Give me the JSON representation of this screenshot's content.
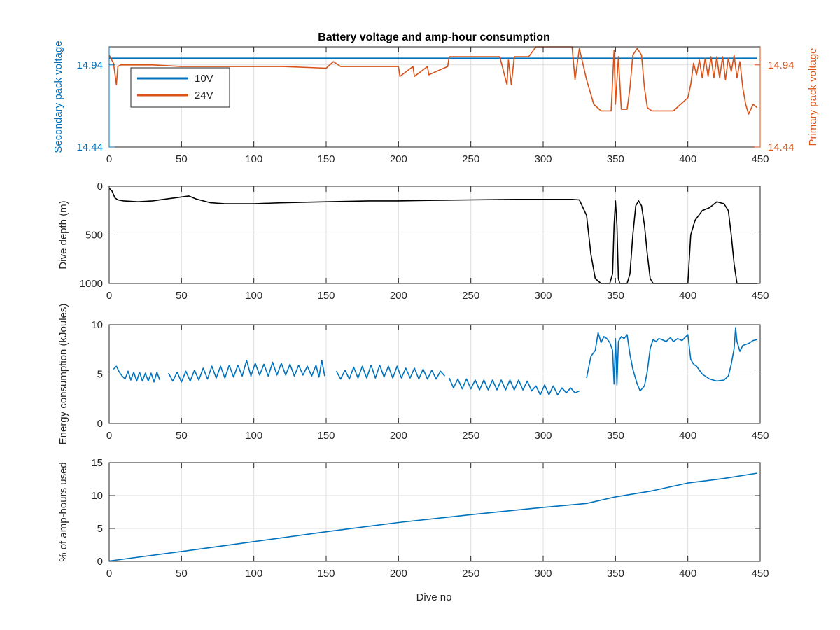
{
  "colors": {
    "blue": "#0072BD",
    "orange": "#D95319",
    "black": "#000000",
    "grid": "#dfdfdf",
    "axis": "#262626"
  },
  "figure": {
    "title": "Battery voltage and amp-hour consumption",
    "xlabel": "Dive no"
  },
  "chart_data": [
    {
      "type": "line",
      "title": "Battery voltage and amp-hour consumption",
      "xlabel": "",
      "ylabel": "Secondary pack voltage",
      "ylabel_right": "Primary pack voltage",
      "xlim": [
        0,
        450
      ],
      "xticks": [
        0,
        50,
        100,
        150,
        200,
        250,
        300,
        350,
        400,
        450
      ],
      "ylim": [
        14.44,
        15.05
      ],
      "yticks": [
        14.44,
        14.94
      ],
      "yticks_right": [
        14.44,
        14.94
      ],
      "grid": true,
      "legend": "top-left",
      "series": [
        {
          "name": "10V",
          "axis": "left",
          "color": "#0072BD",
          "x": [
            0,
            448
          ],
          "y": [
            14.98,
            14.98
          ]
        },
        {
          "name": "24V",
          "axis": "right",
          "color": "#D95319",
          "x": [
            0,
            3,
            5,
            6,
            8,
            15,
            30,
            50,
            80,
            120,
            150,
            155,
            160,
            200,
            201,
            210,
            211,
            220,
            221,
            234,
            235,
            240,
            270,
            275,
            276,
            278,
            280,
            285,
            290,
            295,
            300,
            310,
            320,
            322,
            325,
            330,
            335,
            340,
            345,
            347,
            349,
            350,
            352,
            354,
            356,
            358,
            360,
            362,
            365,
            368,
            370,
            372,
            375,
            380,
            385,
            390,
            395,
            400,
            402,
            404,
            406,
            408,
            410,
            412,
            414,
            416,
            418,
            420,
            422,
            424,
            426,
            428,
            430,
            432,
            434,
            436,
            438,
            440,
            442,
            445,
            448
          ],
          "y": [
            15.0,
            14.95,
            14.82,
            14.93,
            14.94,
            14.94,
            14.94,
            14.93,
            14.93,
            14.93,
            14.92,
            14.96,
            14.93,
            14.93,
            14.87,
            14.93,
            14.87,
            14.93,
            14.88,
            14.93,
            14.99,
            14.99,
            14.99,
            14.82,
            14.97,
            14.82,
            14.99,
            14.99,
            14.99,
            15.05,
            15.05,
            15.05,
            15.05,
            14.85,
            15.04,
            14.85,
            14.7,
            14.66,
            14.66,
            14.66,
            15.03,
            14.7,
            14.99,
            14.67,
            14.67,
            14.67,
            14.8,
            15.0,
            15.04,
            15.0,
            14.8,
            14.68,
            14.66,
            14.66,
            14.66,
            14.66,
            14.7,
            14.74,
            14.82,
            14.95,
            14.88,
            14.97,
            14.86,
            14.98,
            14.87,
            14.99,
            14.86,
            14.99,
            14.86,
            14.99,
            14.85,
            14.98,
            14.9,
            15.0,
            14.86,
            14.96,
            14.8,
            14.7,
            14.64,
            14.7,
            14.68
          ]
        }
      ]
    },
    {
      "type": "line",
      "xlabel": "",
      "ylabel": "Dive depth (m)",
      "xlim": [
        0,
        450
      ],
      "xticks": [
        0,
        50,
        100,
        150,
        200,
        250,
        300,
        350,
        400,
        450
      ],
      "ylim": [
        1000,
        0
      ],
      "yticks": [
        0,
        500,
        1000
      ],
      "y_reversed": true,
      "grid": true,
      "series": [
        {
          "color": "#000000",
          "x": [
            0,
            2,
            4,
            6,
            10,
            20,
            30,
            40,
            50,
            55,
            60,
            65,
            70,
            80,
            100,
            120,
            150,
            180,
            200,
            220,
            250,
            280,
            300,
            320,
            325,
            330,
            333,
            336,
            340,
            345,
            346,
            348,
            349,
            350,
            351,
            352,
            353,
            354,
            356,
            358,
            360,
            362,
            364,
            366,
            368,
            370,
            372,
            374,
            376,
            380,
            390,
            398,
            400,
            402,
            405,
            410,
            415,
            420,
            425,
            428,
            430,
            432,
            434,
            436,
            440,
            448
          ],
          "y": [
            20,
            50,
            120,
            140,
            150,
            160,
            150,
            130,
            110,
            100,
            130,
            150,
            170,
            180,
            180,
            170,
            160,
            150,
            150,
            145,
            140,
            135,
            135,
            135,
            140,
            300,
            700,
            950,
            1000,
            1000,
            1000,
            900,
            400,
            150,
            400,
            950,
            1000,
            1000,
            1000,
            1000,
            900,
            500,
            200,
            150,
            200,
            400,
            700,
            950,
            1000,
            1000,
            1000,
            1000,
            1000,
            500,
            350,
            250,
            220,
            160,
            180,
            250,
            500,
            800,
            1000,
            1000,
            1000,
            1000
          ]
        }
      ]
    },
    {
      "type": "line",
      "xlabel": "",
      "ylabel": "Energy consumption (kJoules)",
      "xlim": [
        0,
        450
      ],
      "xticks": [
        0,
        50,
        100,
        150,
        200,
        250,
        300,
        350,
        400,
        450
      ],
      "ylim": [
        0,
        10
      ],
      "yticks": [
        0,
        5,
        10
      ],
      "grid": true,
      "series": [
        {
          "color": "#0072BD",
          "segments": [
            {
              "x": [
                3,
                5,
                7,
                9,
                11,
                13,
                15,
                17,
                19,
                21,
                23,
                25,
                27,
                29,
                31,
                33,
                35
              ],
              "y": [
                5.5,
                5.8,
                5.2,
                4.8,
                4.5,
                5.3,
                4.4,
                5.2,
                4.3,
                5.2,
                4.3,
                5.1,
                4.3,
                5.1,
                4.2,
                5.2,
                4.4
              ]
            },
            {
              "x": [
                41,
                44,
                47,
                50,
                53,
                56,
                59,
                62,
                65,
                68,
                71,
                74,
                77,
                80,
                83,
                86,
                89,
                92,
                95,
                98,
                101,
                104,
                107,
                110,
                113,
                116,
                119,
                122,
                125,
                128,
                131,
                134,
                137,
                140,
                143,
                145,
                147,
                149
              ],
              "y": [
                5.1,
                4.3,
                5.2,
                4.2,
                5.3,
                4.3,
                5.4,
                4.4,
                5.6,
                4.5,
                5.8,
                4.6,
                5.8,
                4.6,
                5.9,
                4.7,
                5.9,
                4.8,
                6.4,
                4.8,
                6.1,
                4.9,
                6.0,
                4.8,
                6.2,
                4.9,
                6.1,
                4.9,
                6.0,
                4.8,
                5.9,
                4.9,
                5.8,
                4.8,
                5.9,
                4.7,
                6.4,
                4.8
              ]
            },
            {
              "x": [
                157,
                160,
                163,
                166,
                169,
                172,
                175,
                178,
                181,
                184,
                187,
                190,
                193,
                196,
                199,
                202,
                205,
                208,
                211,
                214,
                217,
                220,
                223,
                226,
                229,
                232
              ],
              "y": [
                5.3,
                4.5,
                5.4,
                4.5,
                5.7,
                4.6,
                5.8,
                4.6,
                5.9,
                4.6,
                5.9,
                4.7,
                5.8,
                4.6,
                5.8,
                4.6,
                5.6,
                4.6,
                5.6,
                4.5,
                5.5,
                4.5,
                5.4,
                4.5,
                5.3,
                4.8
              ]
            },
            {
              "x": [
                235,
                238,
                241,
                244,
                247,
                250,
                253,
                256,
                259,
                262,
                265,
                268,
                271,
                274,
                277,
                280,
                283,
                286,
                289,
                292,
                295,
                298,
                301,
                304,
                307,
                310,
                313,
                316,
                319,
                322,
                325
              ],
              "y": [
                4.6,
                3.6,
                4.5,
                3.5,
                4.5,
                3.5,
                4.4,
                3.4,
                4.4,
                3.4,
                4.4,
                3.4,
                4.4,
                3.4,
                4.4,
                3.4,
                4.4,
                3.4,
                4.3,
                3.3,
                3.8,
                2.9,
                3.9,
                2.9,
                3.8,
                2.9,
                3.6,
                3.1,
                3.6,
                3.1,
                3.3
              ]
            },
            {
              "x": [
                330,
                333,
                336,
                338,
                340,
                342,
                344,
                346,
                348,
                349,
                350,
                351,
                352,
                354,
                356,
                358,
                360,
                362,
                365,
                367,
                370,
                372,
                374,
                376,
                378,
                380,
                382,
                385,
                388,
                390,
                393,
                396,
                398,
                400,
                402,
                404,
                406,
                410,
                415,
                420,
                425,
                428,
                430,
                432,
                433,
                434,
                436,
                438,
                440,
                442,
                445,
                448
              ],
              "y": [
                4.6,
                6.8,
                7.4,
                9.2,
                8.2,
                8.8,
                8.6,
                8.2,
                7.4,
                4.0,
                8.6,
                3.9,
                8.3,
                8.8,
                8.6,
                9.0,
                7.0,
                5.5,
                4.0,
                3.3,
                3.8,
                5.3,
                7.6,
                8.5,
                8.3,
                8.6,
                8.5,
                8.3,
                8.7,
                8.3,
                8.6,
                8.4,
                8.7,
                9.0,
                6.5,
                6.0,
                5.8,
                5.0,
                4.5,
                4.3,
                4.4,
                4.8,
                6.0,
                7.6,
                9.7,
                8.3,
                7.3,
                7.9,
                8.0,
                8.1,
                8.4,
                8.5
              ]
            }
          ]
        }
      ]
    },
    {
      "type": "line",
      "xlabel": "Dive no",
      "ylabel": "% of amp-hours used",
      "xlim": [
        0,
        450
      ],
      "xticks": [
        0,
        50,
        100,
        150,
        200,
        250,
        300,
        350,
        400,
        450
      ],
      "ylim": [
        0,
        15
      ],
      "yticks": [
        0,
        5,
        10,
        15
      ],
      "grid": true,
      "series": [
        {
          "color": "#0072BD",
          "x": [
            0,
            50,
            100,
            150,
            200,
            250,
            300,
            330,
            350,
            375,
            400,
            425,
            448
          ],
          "y": [
            0.05,
            1.5,
            3.0,
            4.5,
            5.9,
            7.1,
            8.2,
            8.8,
            9.8,
            10.7,
            11.9,
            12.6,
            13.4
          ]
        }
      ]
    }
  ]
}
